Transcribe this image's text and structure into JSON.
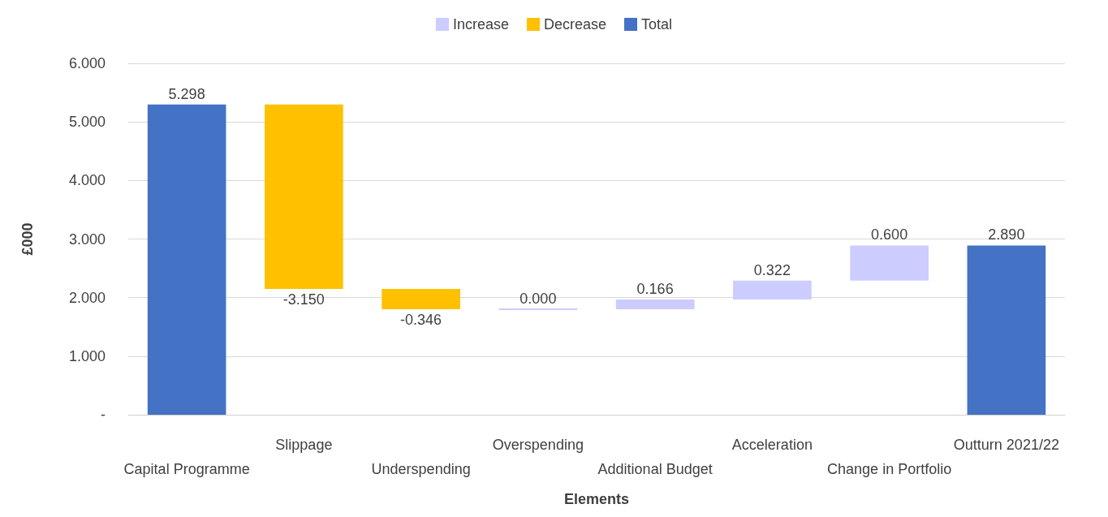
{
  "chart_data": {
    "type": "bar",
    "xlabel": "Elements",
    "ylabel": "£000",
    "categories": [
      "Capital Programme",
      "Slippage",
      "Underspending",
      "Overspending",
      "Additional Budget",
      "Acceleration",
      "Change in Portfolio",
      "Outturn 2021/22"
    ],
    "series": [
      {
        "name": "Increase",
        "color": "#ccccff",
        "values": [
          null,
          null,
          null,
          0.0,
          0.166,
          0.322,
          0.6,
          null
        ],
        "base": [
          null,
          null,
          null,
          1.802,
          1.802,
          1.968,
          2.29,
          null
        ],
        "value_labels": [
          null,
          null,
          null,
          "0.000",
          "0.166",
          "0.322",
          "0.600",
          null
        ]
      },
      {
        "name": "Decrease",
        "color": "#ffc000",
        "values": [
          null,
          -3.15,
          -0.346,
          null,
          null,
          null,
          null,
          null
        ],
        "base": [
          null,
          5.298,
          2.148,
          null,
          null,
          null,
          null,
          null
        ],
        "value_labels": [
          null,
          "-3.150",
          "-0.346",
          null,
          null,
          null,
          null,
          null
        ]
      },
      {
        "name": "Total",
        "color": "#4472c4",
        "values": [
          5.298,
          null,
          null,
          null,
          null,
          null,
          null,
          2.89
        ],
        "base": [
          0,
          null,
          null,
          null,
          null,
          null,
          null,
          0
        ],
        "value_labels": [
          "5.298",
          null,
          null,
          null,
          null,
          null,
          null,
          "2.890"
        ]
      }
    ],
    "ylim": [
      0,
      6
    ],
    "yticks": [
      {
        "value": 0,
        "label": "-"
      },
      {
        "value": 1,
        "label": "1.000"
      },
      {
        "value": 2,
        "label": "2.000"
      },
      {
        "value": 3,
        "label": "3.000"
      },
      {
        "value": 4,
        "label": "4.000"
      },
      {
        "value": 5,
        "label": "5.000"
      },
      {
        "value": 6,
        "label": "6.000"
      }
    ],
    "grid": "y",
    "legend": "top"
  }
}
